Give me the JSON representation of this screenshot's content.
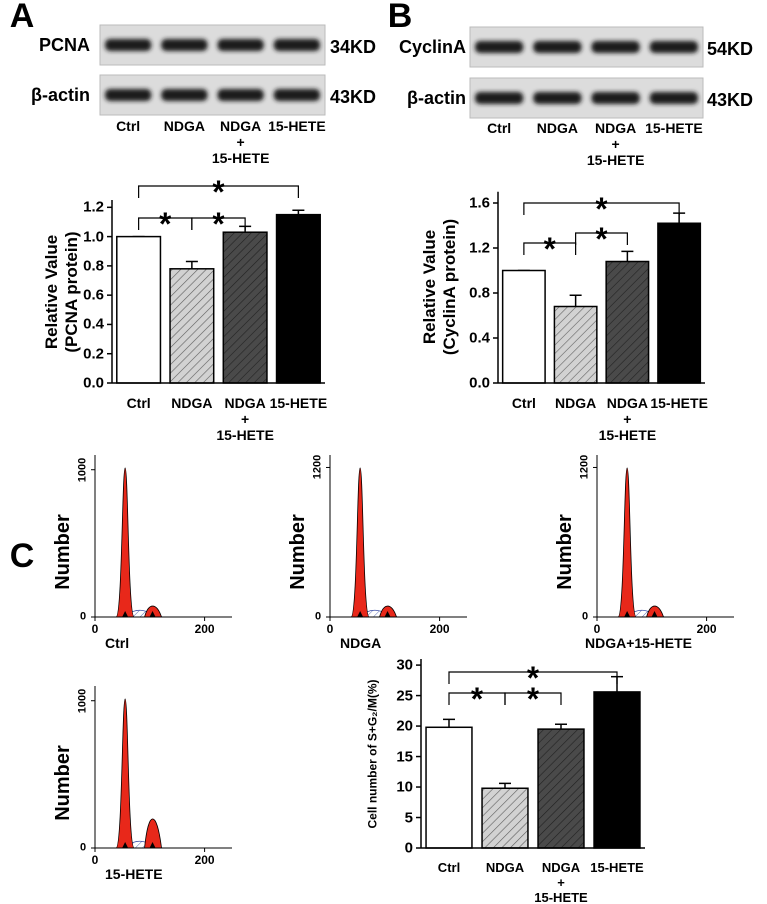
{
  "panel_labels": [
    "A",
    "B",
    "C"
  ],
  "blots": [
    {
      "rows": [
        {
          "protein": "PCNA",
          "size": "34KD"
        },
        {
          "protein": "β-actin",
          "size": "43KD"
        }
      ],
      "lanes": [
        "Ctrl",
        "NDGA",
        "NDGA\n+\n15-HETE",
        "15-HETE"
      ]
    },
    {
      "rows": [
        {
          "protein": "CyclinA",
          "size": "54KD"
        },
        {
          "protein": "β-actin",
          "size": "43KD"
        }
      ],
      "lanes": [
        "Ctrl",
        "NDGA",
        "NDGA\n+\n15-HETE",
        "15-HETE"
      ]
    }
  ],
  "chart_data": [
    {
      "type": "bar",
      "ylabel": "Relative Value\n(PCNA protein)",
      "categories": [
        "Ctrl",
        "NDGA",
        "NDGA\n+\n15-HETE",
        "15-HETE"
      ],
      "values": [
        1.0,
        0.78,
        1.03,
        1.15
      ],
      "errors": [
        0,
        0.05,
        0.04,
        0.03
      ],
      "colors": [
        "#ffffff",
        "#d2d2d2",
        "#4a4a4a",
        "#000000"
      ],
      "hatch": [
        false,
        true,
        true,
        false
      ],
      "ylim": [
        0,
        1.25
      ],
      "yticks": [
        {
          "value": 0,
          "label": "0.0"
        },
        0.2,
        0.4,
        0.6,
        0.8,
        {
          "value": 1,
          "label": "1.0"
        },
        1.2
      ],
      "annotations": [
        "*",
        "*",
        "*"
      ]
    },
    {
      "type": "bar",
      "ylabel": "Relative Value\n(CyclinA protein)",
      "categories": [
        "Ctrl",
        "NDGA",
        "NDGA\n+\n15-HETE",
        "15-HETE"
      ],
      "values": [
        1.0,
        0.68,
        1.08,
        1.42
      ],
      "errors": [
        0,
        0.1,
        0.09,
        0.09
      ],
      "colors": [
        "#ffffff",
        "#d2d2d2",
        "#4a4a4a",
        "#000000"
      ],
      "hatch": [
        false,
        true,
        true,
        false
      ],
      "ylim": [
        0,
        1.7
      ],
      "yticks": [
        {
          "value": 0,
          "label": "0.0"
        },
        0.4,
        0.8,
        1.2,
        1.6
      ],
      "annotations": [
        "*",
        "*",
        "*"
      ]
    },
    {
      "type": "flow-histogram",
      "xlabel": "Ctrl",
      "ylabel": "Number",
      "xlim": [
        0,
        250
      ],
      "xticks": [
        0,
        200
      ],
      "ylim": [
        0,
        1100
      ],
      "yticks": [
        0,
        1000
      ]
    },
    {
      "type": "flow-histogram",
      "xlabel": "NDGA",
      "ylabel": "Number",
      "xlim": [
        0,
        250
      ],
      "xticks": [
        0,
        200
      ],
      "ylim": [
        0,
        1300
      ],
      "yticks": [
        0,
        1200
      ]
    },
    {
      "type": "flow-histogram",
      "xlabel": "NDGA+15-HETE",
      "ylabel": "Number",
      "xlim": [
        0,
        250
      ],
      "xticks": [
        0,
        200
      ],
      "ylim": [
        0,
        1300
      ],
      "yticks": [
        0,
        1200
      ]
    },
    {
      "type": "flow-histogram",
      "xlabel": "15-HETE",
      "ylabel": "Number",
      "xlim": [
        0,
        250
      ],
      "xticks": [
        0,
        200
      ],
      "ylim": [
        0,
        1100
      ],
      "yticks": [
        0,
        1000
      ]
    },
    {
      "type": "bar",
      "ylabel": "Cell number of S+G₂/M(%)",
      "categories": [
        "Ctrl",
        "NDGA",
        "NDGA\n+\n15-HETE",
        "15-HETE"
      ],
      "values": [
        19.8,
        9.8,
        19.5,
        25.6
      ],
      "errors": [
        1.3,
        0.8,
        0.8,
        2.5
      ],
      "colors": [
        "#ffffff",
        "#d2d2d2",
        "#4a4a4a",
        "#000000"
      ],
      "hatch": [
        false,
        true,
        true,
        false
      ],
      "ylim": [
        0,
        31
      ],
      "yticks": [
        0,
        5,
        10,
        15,
        20,
        25,
        30
      ],
      "annotations": [
        "*",
        "*",
        "*"
      ]
    }
  ]
}
